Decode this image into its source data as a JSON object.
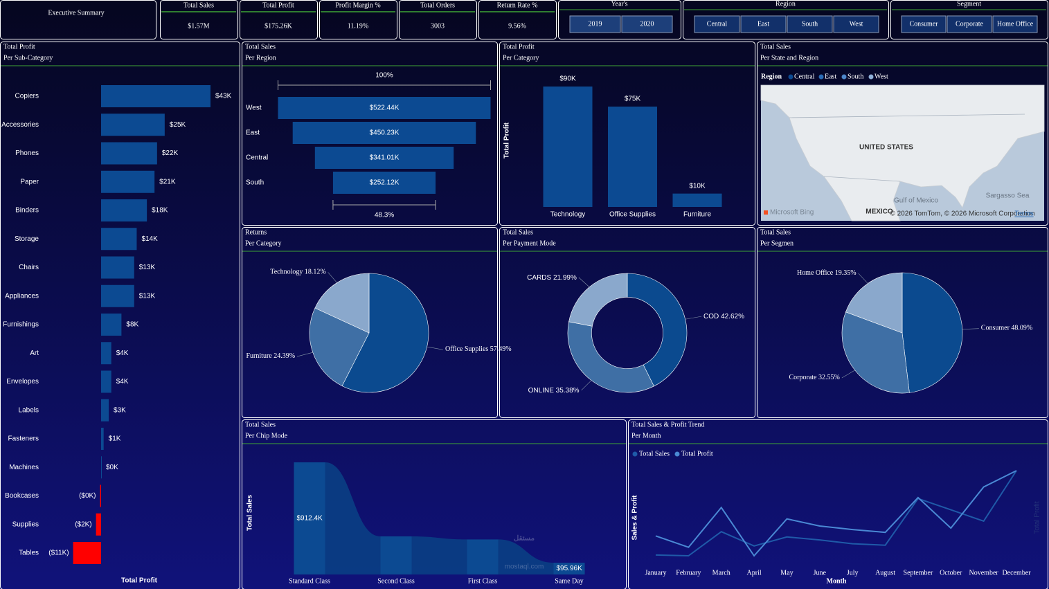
{
  "header": {
    "title": "Executive Summary"
  },
  "kpis": [
    {
      "label": "Total Sales",
      "value": "$1.57M"
    },
    {
      "label": "Total Profit",
      "value": "$175.26K"
    },
    {
      "label": "Profit Margin %",
      "value": "11.19%"
    },
    {
      "label": "Total Orders",
      "value": "3003"
    },
    {
      "label": "Return Rate %",
      "value": "9.56%"
    }
  ],
  "slicers": [
    {
      "title": "Year's",
      "items": [
        "2019",
        "2020"
      ]
    },
    {
      "title": "Region",
      "items": [
        "Central",
        "East",
        "South",
        "West"
      ]
    },
    {
      "title": "Segment",
      "items": [
        "Consumer",
        "Corporate",
        "Home Office"
      ]
    }
  ],
  "watermark": {
    "arabic": "مستقل",
    "latin": "mostaql.com"
  },
  "chart_data": [
    {
      "type": "hbar",
      "title": "Total Profit",
      "subtitle": "Per Sub-Category",
      "x_label": "Total Profit",
      "categories": [
        "Copiers",
        "Accessories",
        "Phones",
        "Paper",
        "Binders",
        "Storage",
        "Chairs",
        "Appliances",
        "Furnishings",
        "Art",
        "Envelopes",
        "Labels",
        "Fasteners",
        "Machines",
        "Bookcases",
        "Supplies",
        "Tables"
      ],
      "values": [
        43,
        25,
        22,
        21,
        18,
        14,
        13,
        13,
        8,
        4,
        4,
        3,
        1,
        0,
        -0.4,
        -2,
        -11
      ],
      "value_labels": [
        "$43K",
        "$25K",
        "$22K",
        "$21K",
        "$18K",
        "$14K",
        "$13K",
        "$13K",
        "$8K",
        "$4K",
        "$4K",
        "$3K",
        "$1K",
        "$0K",
        "($0K)",
        "($2K)",
        "($11K)"
      ],
      "color": "#0c4a92",
      "negative_color": "#ff0000"
    },
    {
      "type": "funnel",
      "title": "Total Sales",
      "subtitle": "Per Region",
      "categories": [
        "West",
        "East",
        "Central",
        "South"
      ],
      "values": [
        522.44,
        450.23,
        341.01,
        252.12
      ],
      "value_labels": [
        "$522.44K",
        "$450.23K",
        "$341.01K",
        "$252.12K"
      ],
      "top_label": "100%",
      "bottom_label": "48.3%",
      "color": "#0c4a92"
    },
    {
      "type": "bar",
      "title": "Total Profit",
      "subtitle": "Per Category",
      "y_label": "Total Profit",
      "categories": [
        "Technology",
        "Office Supplies",
        "Furniture"
      ],
      "values": [
        90,
        75,
        10
      ],
      "value_labels": [
        "$90K",
        "$75K",
        "$10K"
      ],
      "color": "#0c4a92"
    },
    {
      "type": "map",
      "title": "Total Sales",
      "subtitle": "Per State and Region",
      "legend_title": "Region",
      "legend": [
        "Central",
        "East",
        "South",
        "West"
      ],
      "legend_colors": [
        "#0c4a92",
        "#2a6bb5",
        "#4d86c9",
        "#8fb0d8"
      ],
      "map_labels": [
        "UNITED STATES",
        "Gulf of Mexico",
        "MEXICO",
        "Sargasso Sea"
      ],
      "credits": "© 2026 TomTom, © 2026 Microsoft Corporation",
      "terms": "Terms",
      "provider": "Microsoft Bing"
    },
    {
      "type": "pie",
      "title": "Returns",
      "subtitle": "Per Category",
      "categories": [
        "Office Supplies",
        "Furniture",
        "Technology"
      ],
      "values": [
        57.49,
        24.39,
        18.12
      ],
      "value_labels": [
        "57.49%",
        "24.39%",
        "18.12%"
      ],
      "colors": [
        "#0b4a8f",
        "#3f6fa5",
        "#8aa8cc"
      ]
    },
    {
      "type": "donut",
      "title": "Total Sales",
      "subtitle": "Per Payment Mode",
      "categories": [
        "COD",
        "ONLINE",
        "CARDS"
      ],
      "values": [
        42.62,
        35.38,
        21.99
      ],
      "value_labels": [
        "42.62%",
        "35.38%",
        "21.99%"
      ],
      "colors": [
        "#0b4a8f",
        "#3f6fa5",
        "#8aa8cc"
      ]
    },
    {
      "type": "pie",
      "title": "Total Sales",
      "subtitle": "Per Segmen",
      "categories": [
        "Consumer",
        "Corporate",
        "Home Office"
      ],
      "values": [
        48.09,
        32.55,
        19.35
      ],
      "value_labels": [
        "48.09%",
        "32.55%",
        "19.35%"
      ],
      "colors": [
        "#0b4a8f",
        "#3f6fa5",
        "#8aa8cc"
      ]
    },
    {
      "type": "ribbon",
      "title": "Total Sales",
      "subtitle": "Per Chip Mode",
      "y_label": "Total Sales",
      "categories": [
        "Standard Class",
        "Second Class",
        "First Class",
        "Same Day"
      ],
      "values": [
        912.4,
        310,
        285,
        95.96
      ],
      "value_labels": [
        "$912.4K",
        null,
        null,
        "$95.96K"
      ],
      "color": "#0c4a92"
    },
    {
      "type": "line",
      "title": "Total Sales & Profit Trend",
      "subtitle": "Per Month",
      "x_label": "Month",
      "y_label": "Sales & Profit",
      "y2_label": "Total Profit",
      "categories": [
        "January",
        "February",
        "March",
        "April",
        "May",
        "June",
        "July",
        "August",
        "September",
        "October",
        "November",
        "December"
      ],
      "series": [
        {
          "name": "Total Sales",
          "color": "#1f5aa8",
          "values": [
            42,
            40.5,
            88.5,
            60,
            78,
            72,
            64.5,
            61.5,
            154.5,
            132,
            109.5,
            210
          ]
        },
        {
          "name": "Total Profit",
          "color": "#4a89d4",
          "axis": "y2",
          "values": [
            6.8,
            3.6,
            14.8,
            1.2,
            11.6,
            9.6,
            8.6,
            7.8,
            17.6,
            9.0,
            20.6,
            25.2
          ]
        }
      ]
    }
  ]
}
